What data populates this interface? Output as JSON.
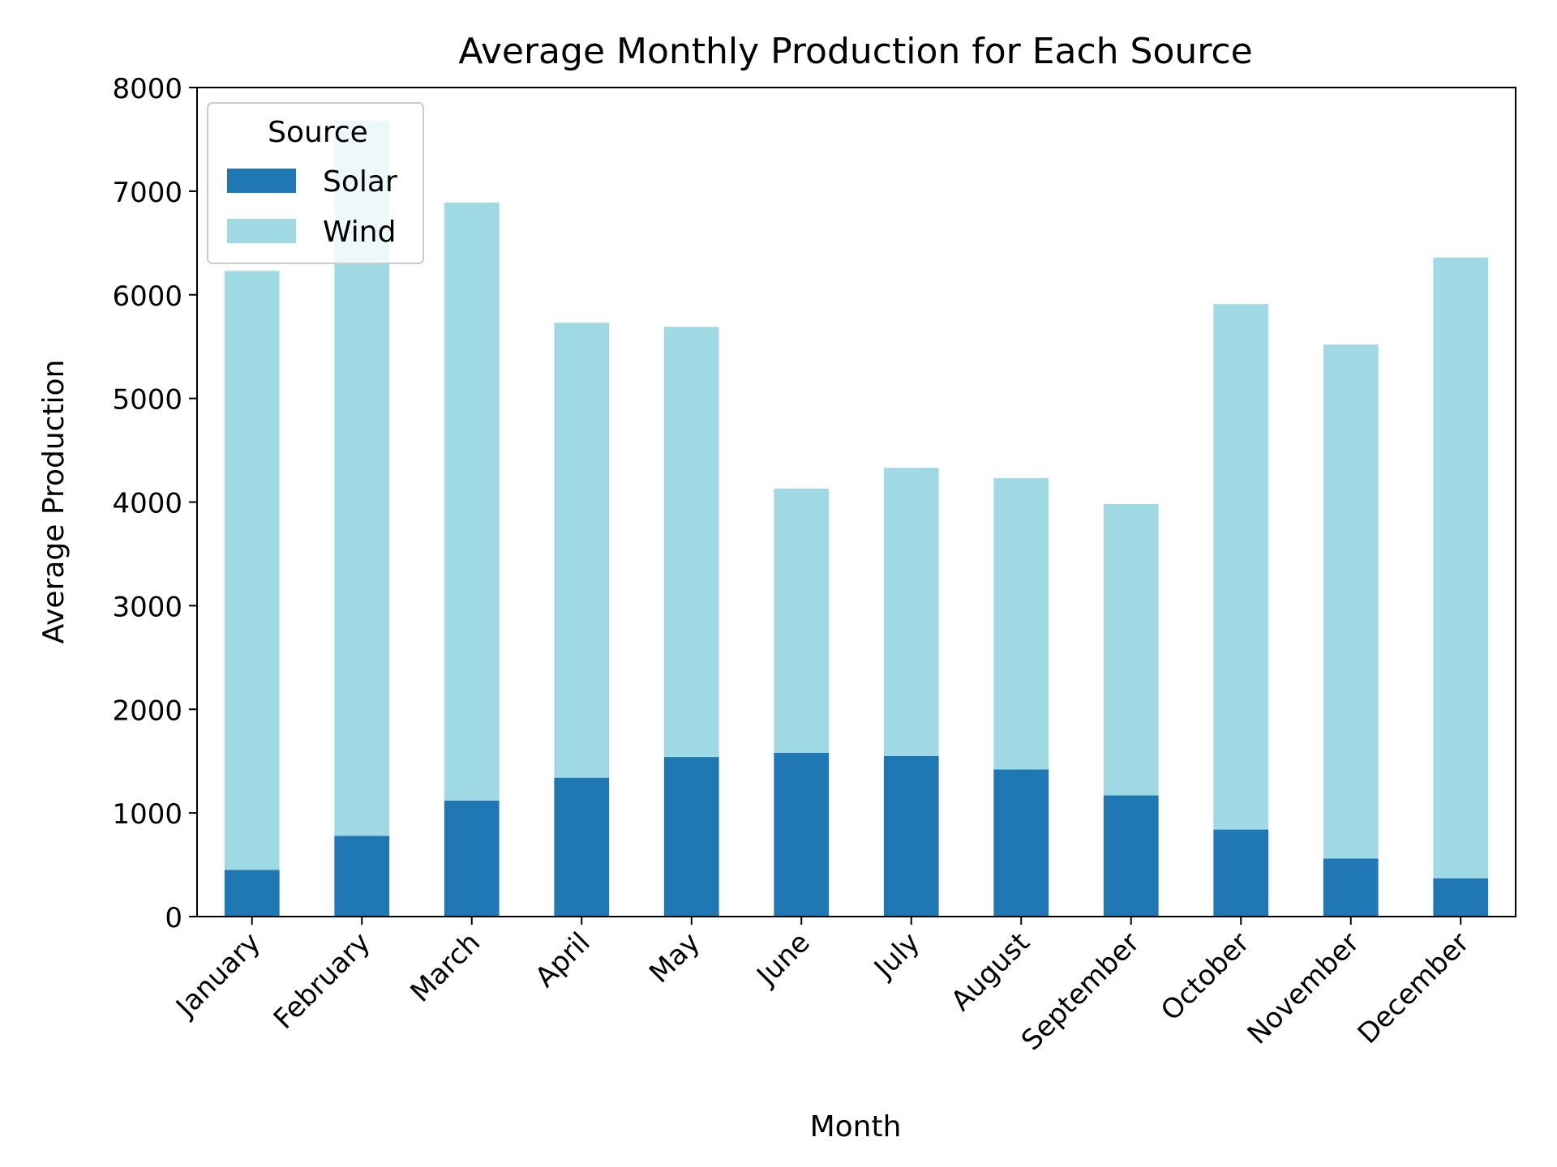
{
  "chart_data": {
    "type": "bar",
    "stacked": true,
    "title": "Average Monthly Production for Each Source",
    "xlabel": "Month",
    "ylabel": "Average Production",
    "ylim": [
      0,
      8000
    ],
    "yticks": [
      "0",
      "1000",
      "2000",
      "3000",
      "4000",
      "5000",
      "6000",
      "7000",
      "8000"
    ],
    "grid": false,
    "legend": {
      "title": "Source",
      "position": "top-left"
    },
    "categories": [
      "January",
      "February",
      "March",
      "April",
      "May",
      "June",
      "July",
      "August",
      "September",
      "October",
      "November",
      "December"
    ],
    "series": [
      {
        "name": "Solar",
        "color": "#1f77b4",
        "values": [
          450,
          780,
          1120,
          1340,
          1540,
          1580,
          1550,
          1420,
          1170,
          840,
          560,
          370
        ]
      },
      {
        "name": "Wind",
        "color": "#9fd9e3",
        "values": [
          5780,
          6900,
          5770,
          4390,
          4150,
          2550,
          2780,
          2810,
          2810,
          5070,
          4960,
          5990
        ]
      }
    ]
  }
}
